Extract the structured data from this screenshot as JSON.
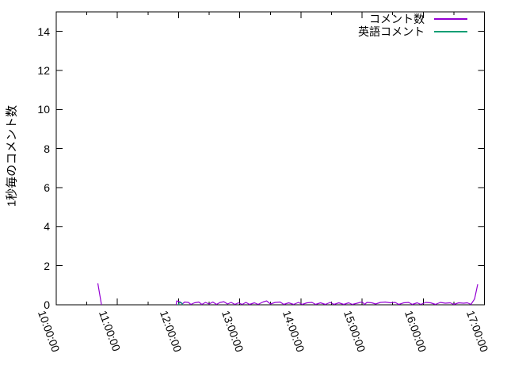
{
  "chart_data": {
    "type": "line",
    "title": "",
    "xlabel": "",
    "ylabel": "1秒毎のコメント数",
    "x_axis": {
      "start_hour": 10,
      "end_hour": 17,
      "tick_interval_hours": 1,
      "minor_tick_minutes": 30,
      "label_rotation_deg": 70,
      "tick_labels": [
        "10:00:00",
        "11:00:00",
        "12:00:00",
        "13:00:00",
        "14:00:00",
        "15:00:00",
        "16:00:00",
        "17:00:00"
      ]
    },
    "y_axis": {
      "min": 0,
      "max": 15,
      "tick_values": [
        0,
        2,
        4,
        6,
        8,
        10,
        12,
        14
      ]
    },
    "grid": false,
    "legend": {
      "position": "top-right-inside"
    },
    "series": [
      {
        "name": "コメント数",
        "color": "#9400d3",
        "segments": [
          [
            [
              10.68,
              1.1
            ],
            [
              10.74,
              0.0
            ]
          ],
          [
            [
              11.96,
              0.0
            ],
            [
              11.97,
              0.2
            ],
            [
              12.02,
              0.16
            ],
            [
              12.06,
              0.04
            ],
            [
              12.1,
              0.14
            ],
            [
              12.16,
              0.12
            ],
            [
              12.2,
              0.02
            ],
            [
              12.26,
              0.1
            ],
            [
              12.33,
              0.14
            ],
            [
              12.38,
              0.02
            ],
            [
              12.44,
              0.12
            ],
            [
              12.5,
              0.04
            ],
            [
              12.56,
              0.14
            ],
            [
              12.62,
              0.02
            ],
            [
              12.68,
              0.12
            ],
            [
              12.74,
              0.16
            ],
            [
              12.8,
              0.04
            ],
            [
              12.86,
              0.12
            ],
            [
              12.92,
              0.02
            ],
            [
              12.98,
              0.1
            ],
            [
              13.04,
              0.02
            ],
            [
              13.1,
              0.12
            ],
            [
              13.16,
              0.02
            ],
            [
              13.24,
              0.1
            ],
            [
              13.3,
              0.02
            ],
            [
              13.38,
              0.14
            ],
            [
              13.44,
              0.2
            ],
            [
              13.5,
              0.04
            ],
            [
              13.58,
              0.12
            ],
            [
              13.66,
              0.14
            ],
            [
              13.72,
              0.02
            ],
            [
              13.8,
              0.1
            ],
            [
              13.88,
              0.02
            ],
            [
              13.96,
              0.12
            ],
            [
              14.02,
              0.02
            ],
            [
              14.1,
              0.1
            ],
            [
              14.18,
              0.12
            ],
            [
              14.24,
              0.02
            ],
            [
              14.32,
              0.1
            ],
            [
              14.4,
              0.02
            ],
            [
              14.48,
              0.12
            ],
            [
              14.54,
              0.02
            ],
            [
              14.62,
              0.1
            ],
            [
              14.7,
              0.02
            ],
            [
              14.78,
              0.1
            ],
            [
              14.84,
              0.02
            ],
            [
              14.92,
              0.08
            ],
            [
              15.0,
              0.15
            ],
            [
              15.04,
              0.02
            ],
            [
              15.08,
              0.12
            ],
            [
              15.16,
              0.1
            ],
            [
              15.22,
              0.04
            ],
            [
              15.3,
              0.12
            ],
            [
              15.38,
              0.14
            ],
            [
              15.46,
              0.1
            ],
            [
              15.54,
              0.12
            ],
            [
              15.6,
              0.02
            ],
            [
              15.68,
              0.1
            ],
            [
              15.76,
              0.12
            ],
            [
              15.82,
              0.02
            ],
            [
              15.9,
              0.1
            ],
            [
              15.96,
              0.02
            ],
            [
              16.04,
              0.12
            ],
            [
              16.12,
              0.1
            ],
            [
              16.2,
              0.02
            ],
            [
              16.28,
              0.12
            ],
            [
              16.36,
              0.08
            ],
            [
              16.44,
              0.1
            ],
            [
              16.5,
              0.02
            ],
            [
              16.58,
              0.1
            ],
            [
              16.66,
              0.08
            ],
            [
              16.72,
              0.1
            ],
            [
              16.78,
              0.02
            ],
            [
              16.84,
              0.3
            ],
            [
              16.89,
              1.05
            ]
          ]
        ]
      },
      {
        "name": "英語コメント",
        "color": "#009e73",
        "segments": [
          [
            [
              12.0,
              0.0
            ],
            [
              12.01,
              0.1
            ],
            [
              12.05,
              0.1
            ],
            [
              12.07,
              0.0
            ]
          ]
        ]
      }
    ]
  },
  "colors": {
    "background": "#ffffff",
    "axis": "#000000",
    "text": "#000000"
  }
}
